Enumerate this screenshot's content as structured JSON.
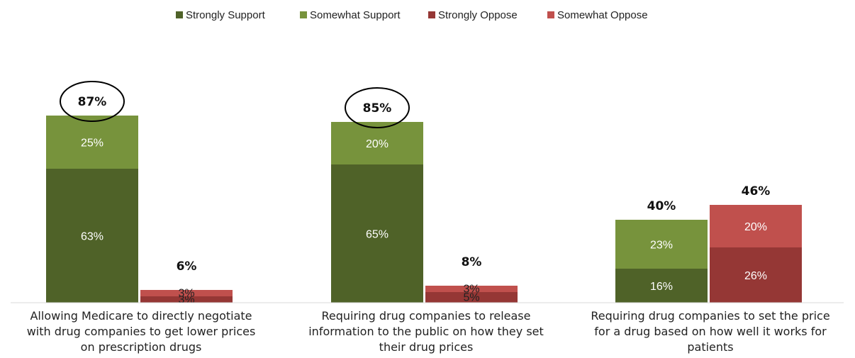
{
  "chart_data": {
    "type": "bar",
    "stacked": true,
    "categories": [
      "Allowing Medicare to directly negotiate with drug companies to get lower prices on prescription drugs",
      "Requiring drug companies to release information to the public on how they set their drug prices",
      "Requiring drug companies to set the price for a drug based on how well it works for patients"
    ],
    "category_label_lines": [
      [
        "Allowing Medicare to directly negotiate",
        "with drug companies to get lower prices",
        "on prescription drugs"
      ],
      [
        "Requiring drug companies to release",
        "information to the public on how they set",
        "their drug prices"
      ],
      [
        "Requiring drug companies to set the price",
        "for a drug based on how well it works for",
        "patients"
      ]
    ],
    "series": [
      {
        "name": "Strongly Support",
        "group": "support",
        "color": "#4f6228",
        "values": [
          63,
          65,
          16
        ],
        "labels": [
          "63%",
          "65%",
          "16%"
        ]
      },
      {
        "name": "Somewhat Support",
        "group": "support",
        "color": "#77933c",
        "values": [
          25,
          20,
          23
        ],
        "labels": [
          "25%",
          "20%",
          "23%"
        ]
      },
      {
        "name": "Strongly Oppose",
        "group": "oppose",
        "color": "#953735",
        "values": [
          3,
          5,
          26
        ],
        "labels": [
          "3%",
          "5%",
          "26%"
        ]
      },
      {
        "name": "Somewhat Oppose",
        "group": "oppose",
        "color": "#c0504d",
        "values": [
          3,
          3,
          20
        ],
        "labels": [
          "3%",
          "3%",
          "20%"
        ]
      }
    ],
    "totals": {
      "support": [
        "87%",
        "85%",
        "40%"
      ],
      "oppose": [
        "6%",
        "8%",
        "46%"
      ]
    },
    "circled_totals": [
      "87%",
      "85%"
    ],
    "legend_position": "top",
    "grid": false,
    "ylim": [
      0,
      100
    ]
  }
}
